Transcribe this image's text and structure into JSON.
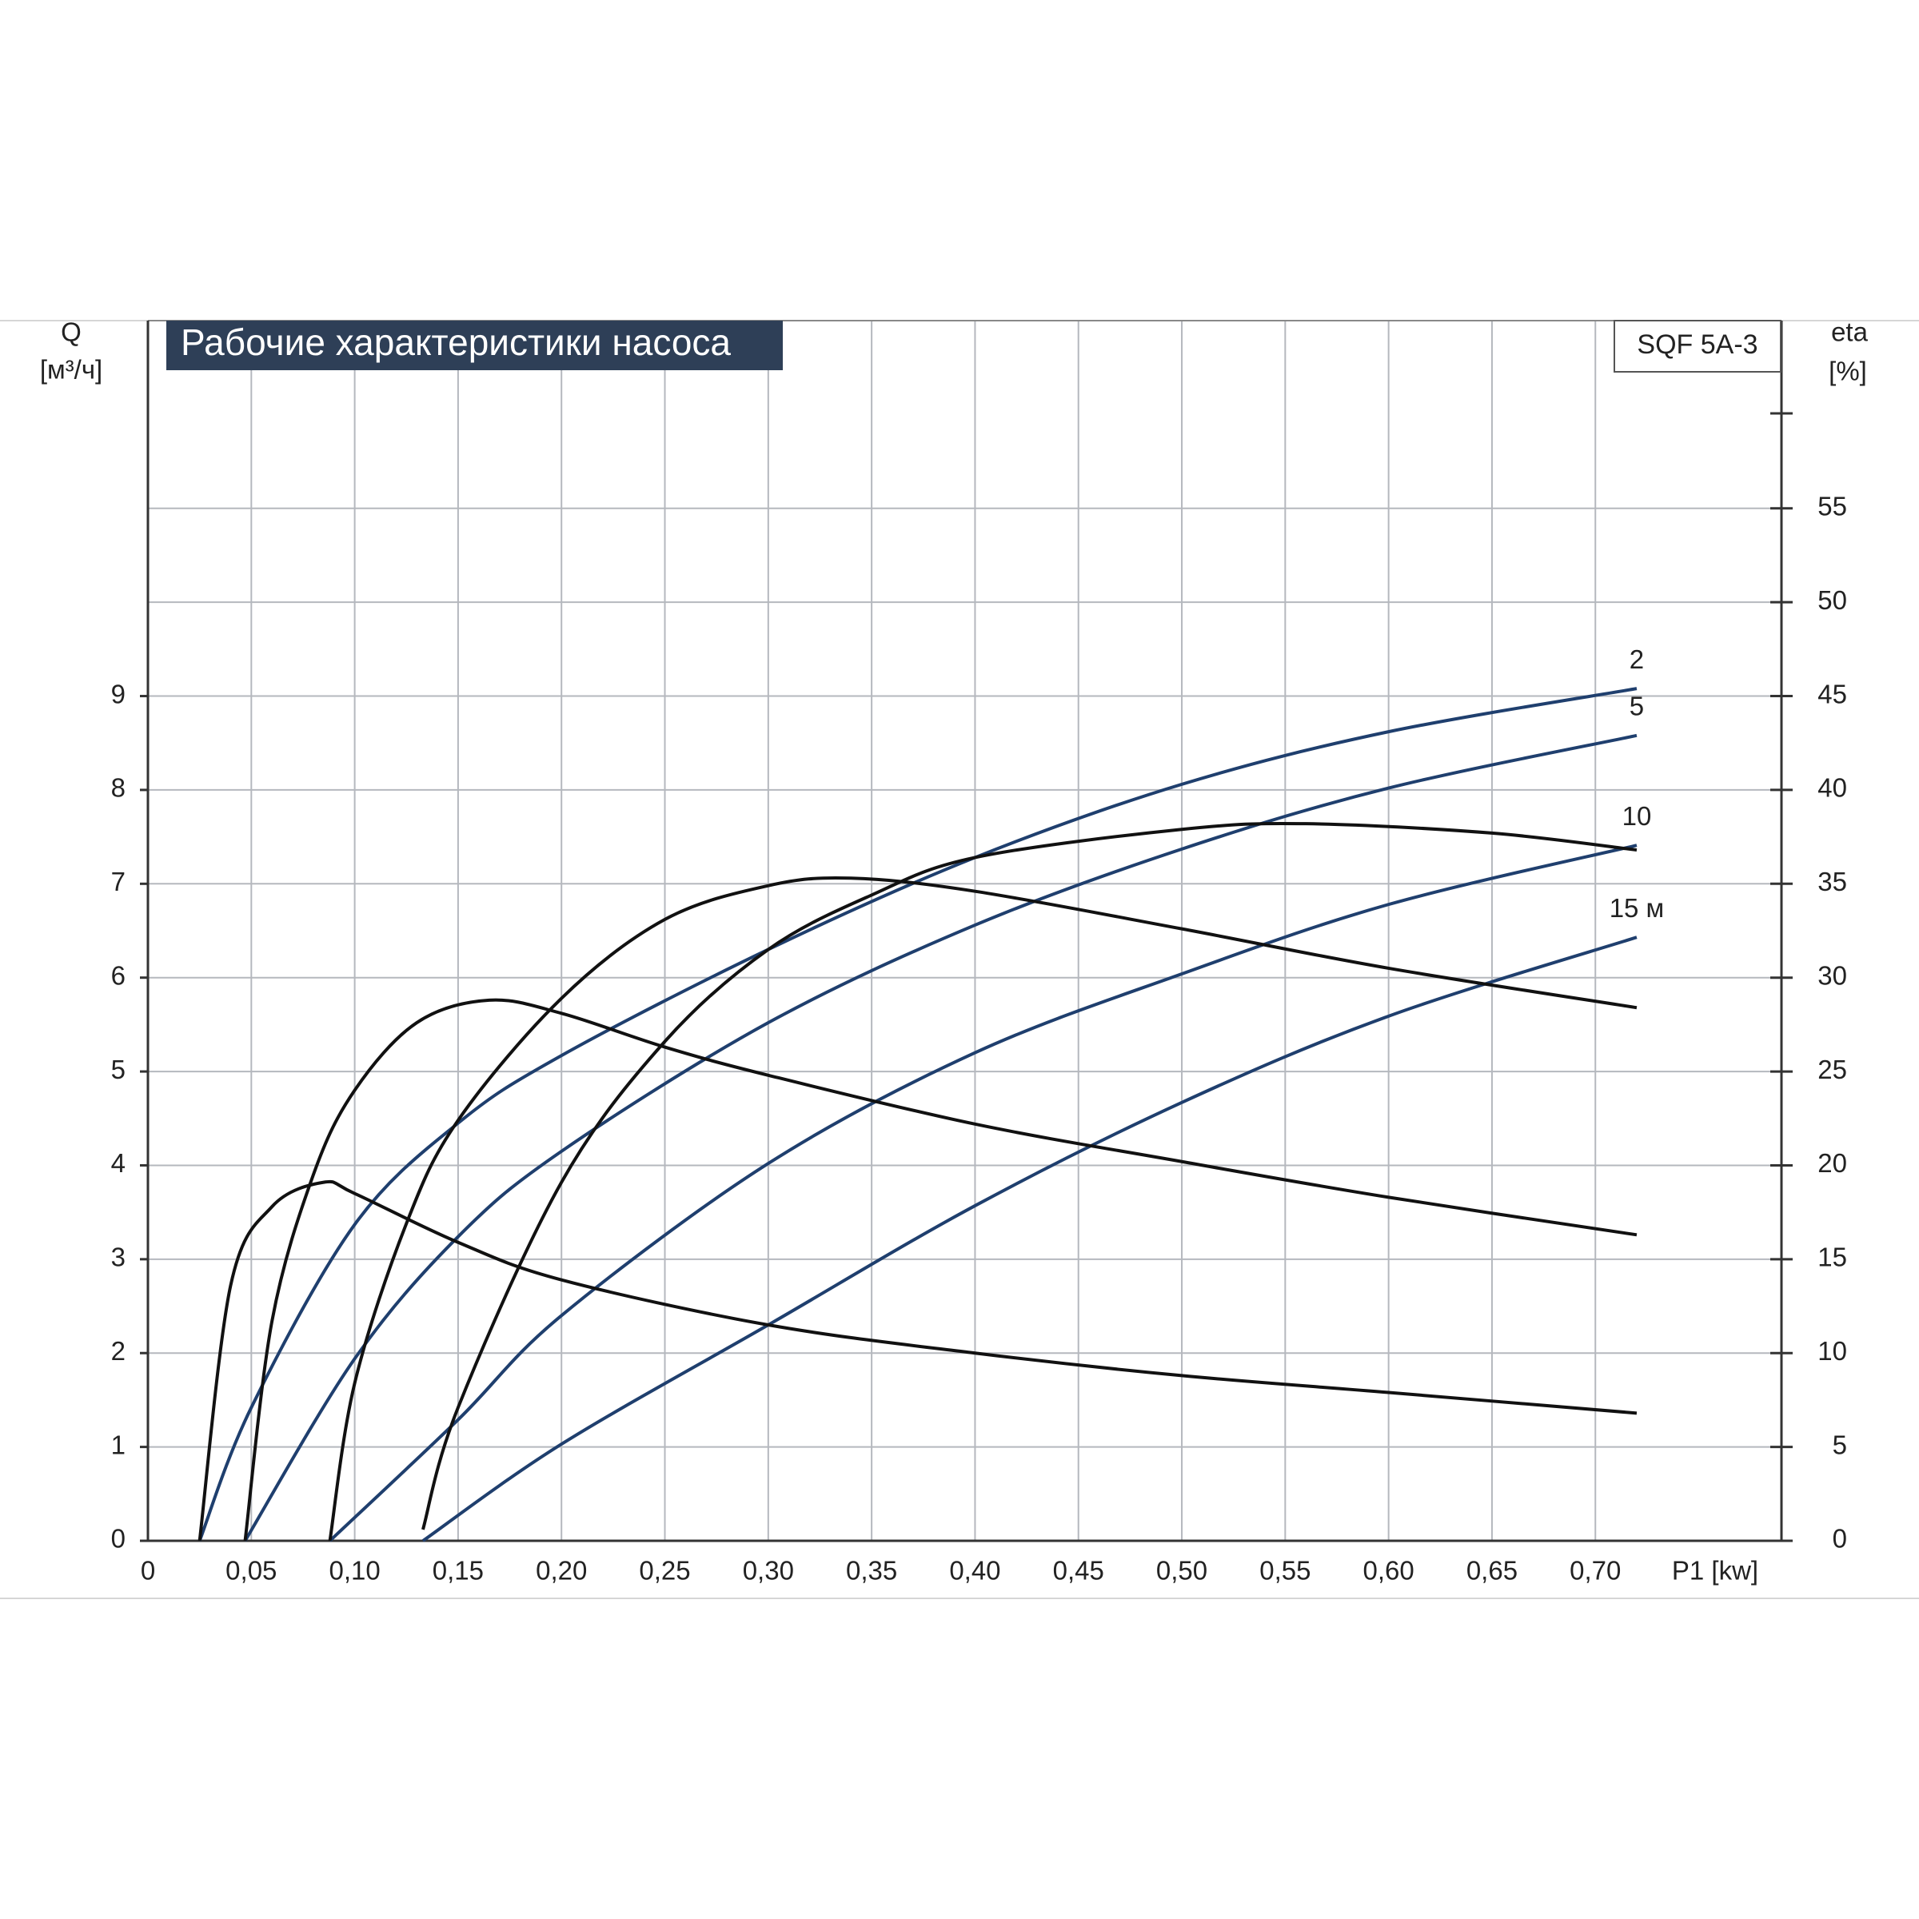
{
  "chart_data": {
    "type": "line",
    "title": "Рабочие характеристики насоса",
    "model": "SQF 5A-3",
    "y_label": "Q",
    "y_unit": "[м³/ч]",
    "y2_label": "eta",
    "y2_unit": "[%]",
    "x_label": "P1 [kw]",
    "xlim": [
      0,
      0.79
    ],
    "xticks": [
      0,
      {
        "value": 0.05,
        "label": "0,05"
      },
      {
        "value": 0.1,
        "label": "0,10"
      },
      {
        "value": 0.15,
        "label": "0,15"
      },
      {
        "value": 0.2,
        "label": "0,20"
      },
      {
        "value": 0.25,
        "label": "0,25"
      },
      {
        "value": 0.3,
        "label": "0,30"
      },
      {
        "value": 0.35,
        "label": "0,35"
      },
      {
        "value": 0.4,
        "label": "0,40"
      },
      {
        "value": 0.45,
        "label": "0,45"
      },
      {
        "value": 0.5,
        "label": "0,50"
      },
      {
        "value": 0.55,
        "label": "0,55"
      },
      {
        "value": 0.6,
        "label": "0,60"
      },
      {
        "value": 0.65,
        "label": "0,65"
      },
      {
        "value": 0.7,
        "label": "0,70"
      }
    ],
    "ylim": [
      0,
      13
    ],
    "yticks": [
      0,
      1,
      2,
      3,
      4,
      5,
      6,
      7,
      8,
      9
    ],
    "y2lim": [
      0,
      65
    ],
    "y2ticks": [
      0,
      5,
      10,
      15,
      20,
      25,
      30,
      35,
      40,
      45,
      50,
      55
    ],
    "grid": true,
    "series": [
      {
        "name": "2",
        "color": "#1f3f6e",
        "x": [
          0.025,
          0.05,
          0.1,
          0.15,
          0.2,
          0.3,
          0.4,
          0.5,
          0.6,
          0.72
        ],
        "values": [
          0,
          1.42,
          3.37,
          4.45,
          5.17,
          6.3,
          7.28,
          8.06,
          8.62,
          9.08
        ]
      },
      {
        "name": "5",
        "color": "#1f3f6e",
        "x": [
          0.047,
          0.1,
          0.15,
          0.2,
          0.3,
          0.4,
          0.5,
          0.6,
          0.72
        ],
        "values": [
          0,
          1.94,
          3.24,
          4.15,
          5.52,
          6.56,
          7.37,
          8.02,
          8.58
        ]
      },
      {
        "name": "10",
        "color": "#1f3f6e",
        "x": [
          0.088,
          0.15,
          0.2,
          0.3,
          0.4,
          0.5,
          0.6,
          0.72
        ],
        "values": [
          0,
          1.29,
          2.4,
          4.02,
          5.2,
          6.04,
          6.78,
          7.41
        ]
      },
      {
        "name": "15 м",
        "color": "#1f3f6e",
        "x": [
          0.133,
          0.2,
          0.3,
          0.4,
          0.5,
          0.6,
          0.72
        ],
        "values": [
          0,
          1.03,
          2.3,
          3.57,
          4.67,
          5.59,
          6.43
        ]
      },
      {
        "axis": "y2",
        "color": "#111111",
        "x": [
          0.025,
          0.04,
          0.06,
          0.085,
          0.1,
          0.15,
          0.2,
          0.3,
          0.4,
          0.5,
          0.6,
          0.72
        ],
        "values": [
          0,
          13.6,
          17.8,
          19.1,
          18.5,
          15.9,
          13.9,
          11.5,
          10,
          8.8,
          7.9,
          6.8
        ]
      },
      {
        "axis": "y2",
        "color": "#111111",
        "x": [
          0.047,
          0.06,
          0.08,
          0.1,
          0.13,
          0.165,
          0.2,
          0.25,
          0.3,
          0.4,
          0.5,
          0.6,
          0.72
        ],
        "values": [
          0,
          11.7,
          19.5,
          24,
          27.6,
          28.8,
          28.1,
          26.3,
          24.8,
          22.2,
          20.2,
          18.3,
          16.3
        ]
      },
      {
        "axis": "y2",
        "color": "#111111",
        "x": [
          0.088,
          0.1,
          0.125,
          0.15,
          0.2,
          0.25,
          0.3,
          0.34,
          0.4,
          0.5,
          0.6,
          0.72
        ],
        "values": [
          0,
          8.4,
          16.9,
          22.4,
          28.9,
          33.1,
          34.9,
          35.3,
          34.6,
          32.6,
          30.5,
          28.4
        ]
      },
      {
        "axis": "y2",
        "color": "#111111",
        "x": [
          0.133,
          0.15,
          0.2,
          0.25,
          0.3,
          0.35,
          0.4,
          0.5,
          0.56,
          0.65,
          0.72
        ],
        "values": [
          0.6,
          7.1,
          19.1,
          26.6,
          31.5,
          34.4,
          36.4,
          37.9,
          38.2,
          37.7,
          36.8
        ]
      }
    ]
  }
}
